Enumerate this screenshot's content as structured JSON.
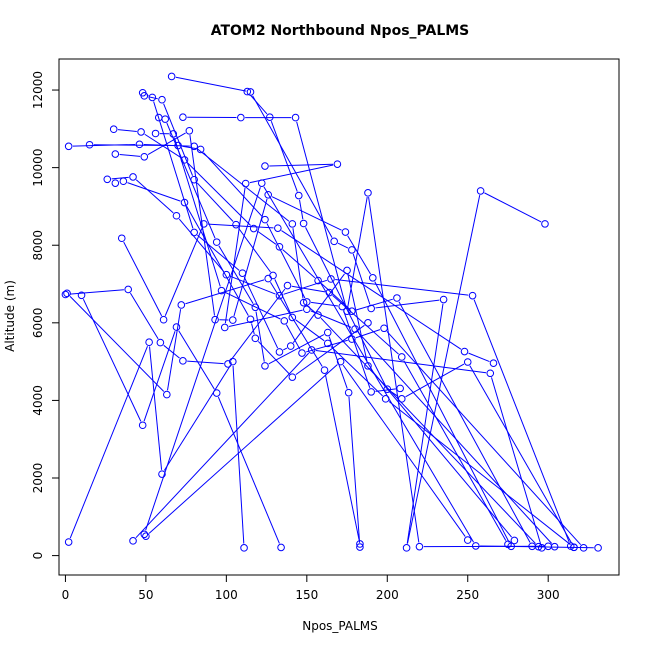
{
  "chart_data": {
    "type": "scatter",
    "title": "ATOM2 Northbound Npos_PALMS",
    "xlabel": "Npos_PALMS",
    "ylabel": "Altitude (m)",
    "xlim": [
      -4,
      344
    ],
    "ylim": [
      -500,
      12800
    ],
    "xticks": [
      0,
      50,
      100,
      150,
      200,
      250,
      300
    ],
    "yticks": [
      0,
      2000,
      4000,
      6000,
      8000,
      10000,
      12000
    ],
    "grid": false,
    "legend": "none",
    "style": {
      "point_color": "#0000ff",
      "line_color": "#0000ff",
      "marker": "open-circle",
      "connected": true
    },
    "series": [
      {
        "x": [
          66,
          115,
          167,
          178,
          190,
          235,
          212,
          258,
          298
        ],
        "y": [
          12350,
          11950,
          8100,
          7880,
          6370,
          6600,
          200,
          9400,
          8550
        ]
      },
      {
        "x": [
          113,
          127,
          145,
          148,
          200,
          209,
          250,
          316
        ],
        "y": [
          11960,
          11300,
          9280,
          8560,
          4290,
          4040,
          4990,
          215
        ]
      },
      {
        "x": [
          48,
          54,
          80,
          110,
          133,
          140,
          175,
          188,
          279
        ],
        "y": [
          11930,
          11810,
          8330,
          7280,
          5250,
          5400,
          7350,
          4890,
          390
        ]
      },
      {
        "x": [
          49,
          60,
          80,
          106,
          129,
          141,
          163,
          199,
          316
        ],
        "y": [
          11850,
          11750,
          9690,
          8530,
          7220,
          6140,
          5470,
          4040,
          213
        ]
      },
      {
        "x": [
          73,
          109,
          143,
          175,
          188,
          220,
          300
        ],
        "y": [
          11300,
          11290,
          11290,
          6300,
          9350,
          230,
          240
        ]
      },
      {
        "x": [
          58,
          62,
          94,
          118,
          124,
          163,
          176,
          183
        ],
        "y": [
          11290,
          11250,
          8080,
          6400,
          4890,
          5750,
          4200,
          220
        ]
      },
      {
        "x": [
          56,
          67,
          97,
          136,
          147,
          178,
          198,
          322
        ],
        "y": [
          10880,
          10870,
          6830,
          6050,
          5220,
          5580,
          5860,
          200
        ]
      },
      {
        "x": [
          2,
          46,
          80,
          141,
          148,
          157,
          294
        ],
        "y": [
          10550,
          10600,
          10550,
          8550,
          6520,
          6200,
          230
        ]
      },
      {
        "x": [
          15,
          70,
          84,
          124,
          150,
          172,
          190,
          208
        ],
        "y": [
          10590,
          10570,
          10470,
          8660,
          6540,
          6420,
          4220,
          4310
        ]
      },
      {
        "x": [
          30,
          47,
          74,
          117,
          133,
          157,
          178,
          206,
          290
        ],
        "y": [
          10990,
          10920,
          10200,
          8430,
          7960,
          7090,
          6300,
          6640,
          240
        ]
      },
      {
        "x": [
          31,
          49,
          77,
          93,
          104,
          126,
          174,
          191,
          277
        ],
        "y": [
          10350,
          10280,
          10950,
          6080,
          6070,
          9300,
          8340,
          7160,
          240
        ]
      },
      {
        "x": [
          124,
          169,
          112,
          99,
          150,
          180,
          304
        ],
        "y": [
          10040,
          10090,
          9590,
          5880,
          6350,
          5840,
          230
        ]
      },
      {
        "x": [
          26,
          42,
          69,
          100,
          133,
          165,
          253,
          314
        ],
        "y": [
          9700,
          9760,
          8760,
          7240,
          6700,
          7130,
          6700,
          245
        ]
      },
      {
        "x": [
          31,
          36,
          74,
          115,
          118,
          141,
          188
        ],
        "y": [
          9600,
          9650,
          9100,
          6090,
          5600,
          4600,
          6000
        ]
      },
      {
        "x": [
          0,
          39,
          59,
          73,
          101,
          138,
          164,
          209,
          275
        ],
        "y": [
          6730,
          6860,
          5490,
          5020,
          4940,
          6960,
          6780,
          5120,
          290
        ]
      },
      {
        "x": [
          1,
          63,
          72,
          126,
          161,
          183
        ],
        "y": [
          6760,
          4150,
          6460,
          7140,
          4780,
          300
        ]
      },
      {
        "x": [
          10,
          48,
          69,
          94,
          134
        ],
        "y": [
          6710,
          3360,
          5890,
          4190,
          210
        ]
      },
      {
        "x": [
          35,
          61,
          86,
          132,
          248,
          266
        ],
        "y": [
          8180,
          6080,
          8550,
          8440,
          5260,
          4960
        ]
      },
      {
        "x": [
          2,
          52,
          60,
          104,
          111
        ],
        "y": [
          350,
          5500,
          2100,
          5000,
          200
        ]
      },
      {
        "x": [
          42,
          153,
          264,
          296
        ],
        "y": [
          380,
          5300,
          4700,
          200
        ]
      },
      {
        "x": [
          49,
          122,
          255,
          331
        ],
        "y": [
          550,
          9600,
          250,
          200
        ]
      },
      {
        "x": [
          50,
          171,
          250
        ],
        "y": [
          500,
          5000,
          400
        ]
      }
    ]
  }
}
